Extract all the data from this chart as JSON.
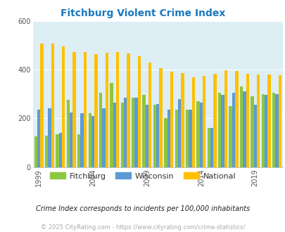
{
  "title": "Fitchburg Violent Crime Index",
  "title_color": "#1a7abf",
  "years": [
    1999,
    2000,
    2001,
    2002,
    2003,
    2004,
    2005,
    2006,
    2007,
    2008,
    2009,
    2010,
    2011,
    2012,
    2013,
    2014,
    2015,
    2016,
    2017,
    2018,
    2019,
    2020,
    2021
  ],
  "fitchburg": [
    125,
    130,
    135,
    275,
    135,
    220,
    305,
    345,
    265,
    285,
    295,
    255,
    200,
    235,
    235,
    270,
    160,
    305,
    250,
    330,
    290,
    300,
    305
  ],
  "wisconsin": [
    235,
    240,
    140,
    225,
    220,
    210,
    240,
    265,
    285,
    285,
    255,
    260,
    235,
    280,
    235,
    265,
    160,
    295,
    305,
    310,
    255,
    295,
    300
  ],
  "national": [
    507,
    507,
    495,
    472,
    472,
    463,
    470,
    473,
    465,
    455,
    430,
    405,
    390,
    387,
    367,
    375,
    383,
    397,
    395,
    383,
    380,
    380,
    378
  ],
  "bar_colors": {
    "fitchburg": "#8dc63f",
    "wisconsin": "#5b9bd5",
    "national": "#ffc000"
  },
  "ylim": [
    0,
    600
  ],
  "yticks": [
    0,
    200,
    400,
    600
  ],
  "plot_bg": "#ddeef5",
  "subtitle": "Crime Index corresponds to incidents per 100,000 inhabitants",
  "footer": "© 2025 CityRating.com - https://www.cityrating.com/crime-statistics/",
  "subtitle_color": "#222222",
  "footer_color": "#aaaaaa",
  "legend_text_color": "#333333"
}
